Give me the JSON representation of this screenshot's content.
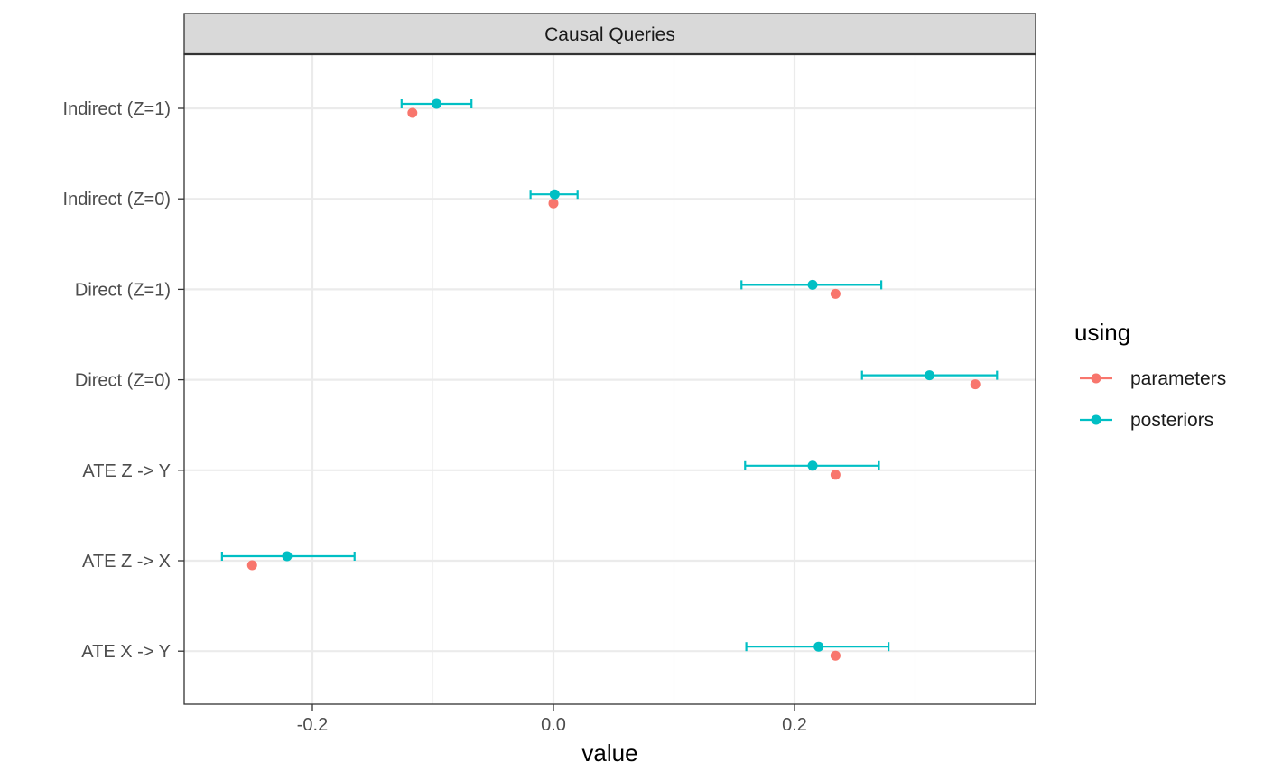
{
  "chart_data": {
    "type": "scatter",
    "panel_title": "Causal Queries",
    "xlabel": "value",
    "ylabel": "",
    "xlim": [
      -0.3,
      0.4
    ],
    "x_ticks": [
      -0.2,
      0.0,
      0.2
    ],
    "x_tick_labels": [
      "-0.2",
      "0.0",
      "0.2"
    ],
    "categories": [
      "Indirect (Z=1)",
      "Indirect (Z=0)",
      "Direct (Z=1)",
      "Direct (Z=0)",
      "ATE Z -> Y",
      "ATE Z -> X",
      "ATE X -> Y"
    ],
    "grid": true,
    "legend": {
      "title": "using",
      "position": "right"
    },
    "series": [
      {
        "name": "parameters",
        "color": "#F8766D",
        "values": [
          -0.117,
          0.0,
          0.234,
          0.35,
          0.234,
          -0.25,
          0.234
        ]
      },
      {
        "name": "posteriors",
        "color": "#00BFC4",
        "values": [
          -0.097,
          0.001,
          0.215,
          0.312,
          0.215,
          -0.221,
          0.22
        ],
        "lower": [
          -0.126,
          -0.019,
          0.156,
          0.256,
          0.159,
          -0.275,
          0.16
        ],
        "upper": [
          -0.068,
          0.02,
          0.272,
          0.368,
          0.27,
          -0.165,
          0.278
        ]
      }
    ]
  }
}
